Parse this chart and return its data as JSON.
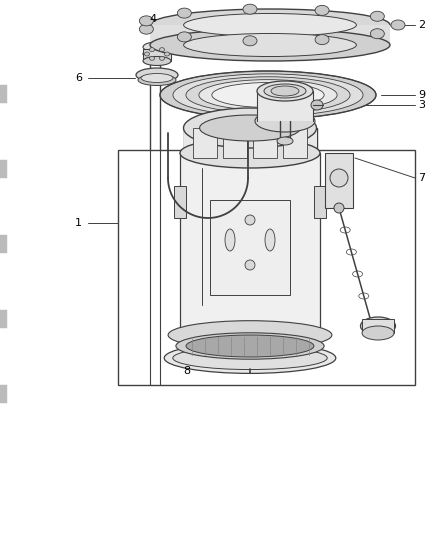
{
  "bg_color": "#ffffff",
  "line_color": "#404040",
  "label_color": "#000000",
  "label_fs": 8,
  "lw": 0.9
}
